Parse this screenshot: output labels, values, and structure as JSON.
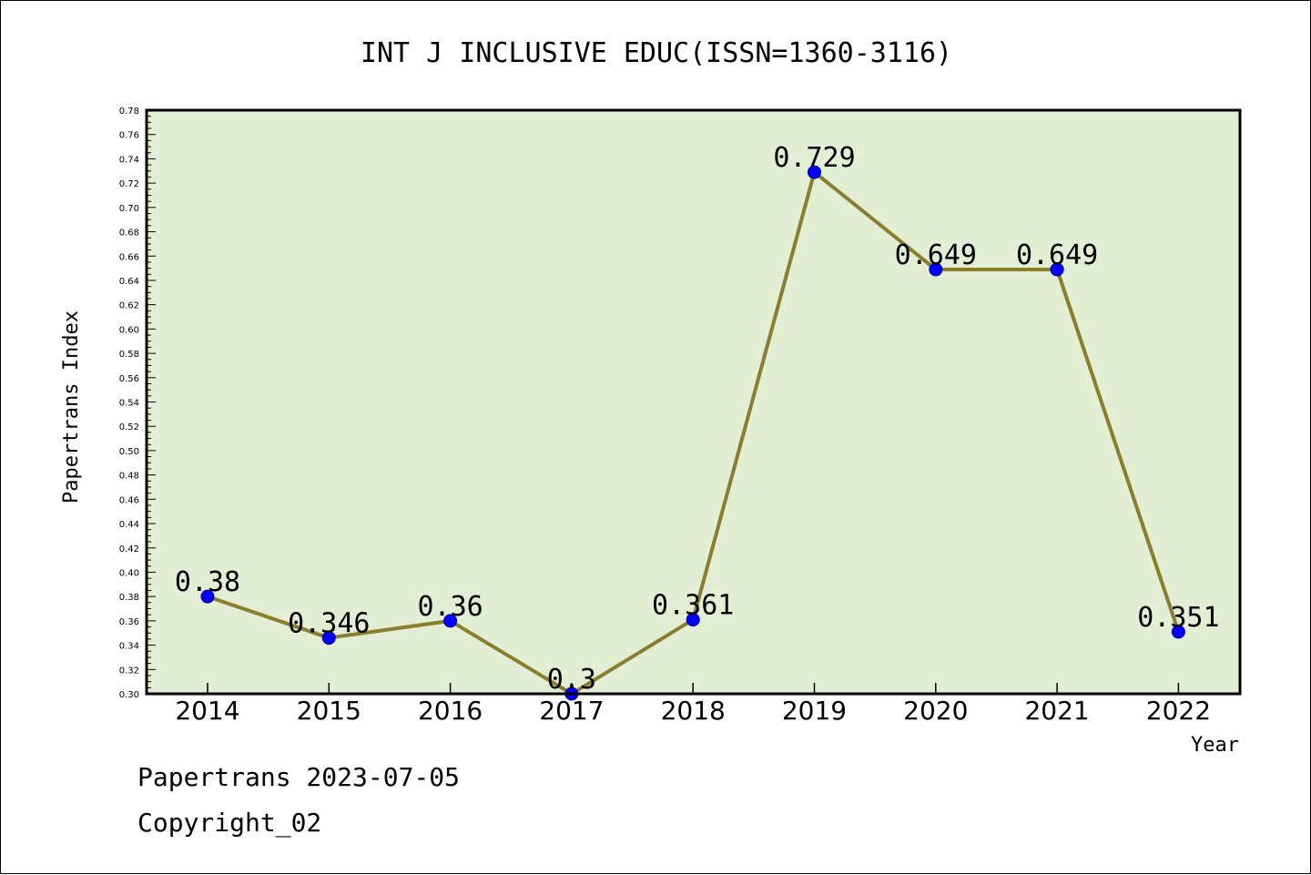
{
  "chart_data": {
    "type": "line",
    "title": "INT J INCLUSIVE EDUC(ISSN=1360-3116)",
    "xlabel": "Year",
    "ylabel": "Papertrans Index",
    "categories": [
      "2014",
      "2015",
      "2016",
      "2017",
      "2018",
      "2019",
      "2020",
      "2021",
      "2022"
    ],
    "series": [
      {
        "values": [
          0.38,
          0.346,
          0.36,
          0.3,
          0.361,
          0.729,
          0.649,
          0.649,
          0.351
        ],
        "labels": [
          "0.38",
          "0.346",
          "0.36",
          "0.3",
          "0.361",
          "0.729",
          "0.649",
          "0.649",
          "0.351"
        ],
        "line_color": "#8b7d2e",
        "marker_color": "#0000ff"
      }
    ],
    "ylim": [
      0.3,
      0.78
    ],
    "yticks": [
      "0.30",
      "0.32",
      "0.34",
      "0.36",
      "0.38",
      "0.40",
      "0.42",
      "0.44",
      "0.46",
      "0.48",
      "0.50",
      "0.52",
      "0.54",
      "0.56",
      "0.58",
      "0.60",
      "0.62",
      "0.64",
      "0.66",
      "0.68",
      "0.70",
      "0.72",
      "0.74",
      "0.76",
      "0.78"
    ],
    "plot_background": "#e2efd4",
    "grid": false,
    "legend": "none"
  },
  "footer": {
    "date_line": "Papertrans 2023-07-05",
    "copyright_line": "Copyright_02"
  }
}
